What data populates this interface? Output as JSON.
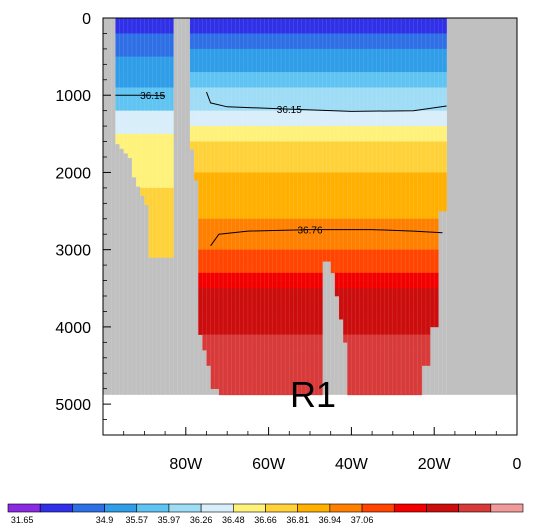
{
  "chart_data": {
    "type": "heatmap",
    "title": "",
    "xlabel": "",
    "ylabel": "",
    "xlim": [
      -100,
      0
    ],
    "ylim": [
      5400,
      0
    ],
    "x_ticks": [
      {
        "value": -80,
        "label": "80W"
      },
      {
        "value": -60,
        "label": "60W"
      },
      {
        "value": -40,
        "label": "40W"
      },
      {
        "value": -20,
        "label": "20W"
      },
      {
        "value": 0,
        "label": "0"
      }
    ],
    "y_ticks": [
      {
        "value": 0,
        "label": "0"
      },
      {
        "value": 1000,
        "label": "1000"
      },
      {
        "value": 2000,
        "label": "2000"
      },
      {
        "value": 3000,
        "label": "3000"
      },
      {
        "value": 4000,
        "label": "4000"
      },
      {
        "value": 5000,
        "label": "5000"
      }
    ],
    "region_label": "R1",
    "land_color": "#c0c0c0",
    "colorbar": {
      "levels": [
        "31.65",
        "34.9",
        "35.57",
        "35.97",
        "36.26",
        "36.48",
        "36.66",
        "36.81",
        "36.94",
        "37.06"
      ],
      "colors": [
        "#8a2be2",
        "#3030e8",
        "#2f6fe6",
        "#2f9de8",
        "#5fc4f2",
        "#9fdcf5",
        "#d8eefa",
        "#fff27a",
        "#ffd23a",
        "#ffb000",
        "#ff8000",
        "#ff4500",
        "#f20000",
        "#cc0d0d",
        "#d83a3a",
        "#f09a9a"
      ]
    },
    "contours": [
      {
        "label": "36.15",
        "points": [
          [
            -97,
            1000
          ],
          [
            -88,
            1000
          ],
          [
            -85,
            1010
          ]
        ]
      },
      {
        "label": "36.15",
        "points": [
          [
            -75,
            960
          ],
          [
            -74,
            1100
          ],
          [
            -70,
            1150
          ],
          [
            -55,
            1180
          ],
          [
            -40,
            1210
          ],
          [
            -25,
            1200
          ],
          [
            -17,
            1140
          ]
        ]
      },
      {
        "label": "36.76",
        "points": [
          [
            -74,
            2950
          ],
          [
            -72,
            2800
          ],
          [
            -65,
            2760
          ],
          [
            -50,
            2740
          ],
          [
            -35,
            2740
          ],
          [
            -25,
            2760
          ],
          [
            -18,
            2780
          ]
        ]
      }
    ]
  }
}
